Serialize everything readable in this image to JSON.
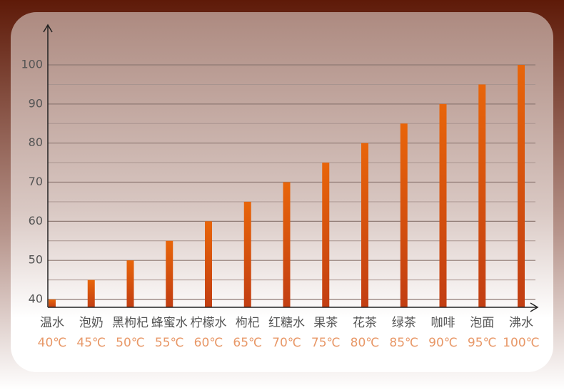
{
  "chart_data": {
    "type": "bar",
    "categories": [
      "温水",
      "泡奶",
      "黑枸杞",
      "蜂蜜水",
      "柠檬水",
      "枸杞",
      "红糖水",
      "果茶",
      "花茶",
      "绿茶",
      "咖啡",
      "泡面",
      "沸水"
    ],
    "values": [
      40,
      45,
      50,
      55,
      60,
      65,
      70,
      75,
      80,
      85,
      90,
      95,
      100
    ],
    "value_labels": [
      "40℃",
      "45℃",
      "50℃",
      "55℃",
      "60℃",
      "65℃",
      "70℃",
      "75℃",
      "80℃",
      "85℃",
      "90℃",
      "95℃",
      "100℃"
    ],
    "colors": [
      "#e8650a",
      "#c23e12"
    ],
    "ylim": [
      38,
      110
    ],
    "yticks": [
      40,
      50,
      60,
      70,
      80,
      90,
      100
    ],
    "minor_yticks": [
      45,
      55,
      65,
      75,
      85,
      95
    ],
    "grid": true
  }
}
